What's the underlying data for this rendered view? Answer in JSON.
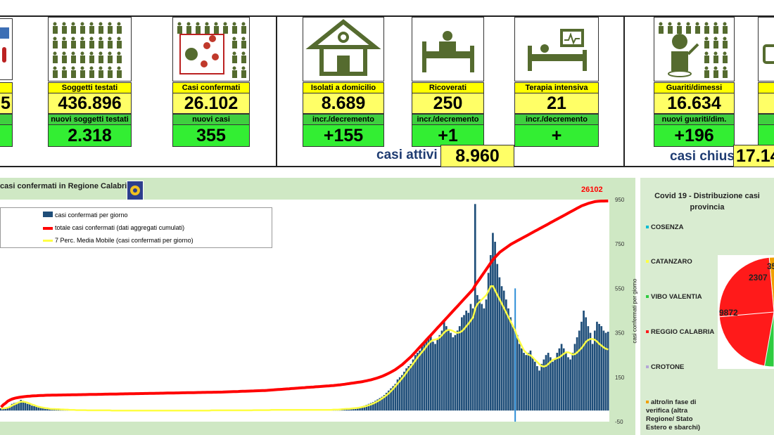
{
  "tiles": [
    {
      "id": "tamponi",
      "label": "",
      "value": "5",
      "inc": ""
    },
    {
      "id": "soggetti",
      "label": "Soggetti testati",
      "value": "436.896",
      "inc_label": "nuovi soggetti testati",
      "inc": "2.318"
    },
    {
      "id": "casi",
      "label": "Casi confermati",
      "value": "26.102",
      "inc_label": "nuovi casi",
      "inc": "355"
    },
    {
      "id": "isolati",
      "label": "Isolati a domicilio",
      "value": "8.689",
      "inc_label": "incr./decremento",
      "inc": "+155"
    },
    {
      "id": "ricoverati",
      "label": "Ricoverati",
      "value": "250",
      "inc_label": "incr./decremento",
      "inc": "+1"
    },
    {
      "id": "terapia",
      "label": "Terapia intensiva",
      "value": "21",
      "inc_label": "incr./decremento",
      "inc": "+"
    },
    {
      "id": "guariti",
      "label": "Guariti/dimessi",
      "value": "16.634",
      "inc_label": "nuovi guariti/dim.",
      "inc": "+196"
    }
  ],
  "summary": {
    "attivi_label": "casi attivi",
    "attivi_value": "8.960",
    "chiusi_label": "casi chiusi",
    "chiusi_value": "17.14"
  },
  "colors": {
    "bars": "#1f4e79",
    "total": "#ff0000",
    "ma": "#ffff44",
    "bg": "#cfe8c4"
  },
  "chart_data": {
    "type": "bar",
    "title": "casi confermati in Regione Calabria",
    "legend": [
      "casi confermati per giorno",
      "totale casi confermati (dati aggregati cumulati)",
      "7 Perc. Media Mobile (casi confermati per giorno)"
    ],
    "ylabel": "casi confermati  per giorno",
    "ylim": [
      -50,
      950
    ],
    "yticks": [
      950,
      750,
      550,
      350,
      150,
      -50
    ],
    "total_label": "26102",
    "daily": [
      10,
      12,
      8,
      14,
      20,
      30,
      34,
      36,
      40,
      48,
      44,
      36,
      30,
      28,
      22,
      20,
      18,
      14,
      12,
      12,
      10,
      8,
      8,
      6,
      6,
      6,
      5,
      5,
      4,
      4,
      3,
      3,
      3,
      2,
      2,
      2,
      2,
      2,
      1,
      1,
      1,
      1,
      1,
      1,
      1,
      2,
      1,
      1,
      1,
      0,
      0,
      0,
      1,
      0,
      0,
      0,
      0,
      0,
      0,
      0,
      0,
      0,
      0,
      0,
      1,
      0,
      0,
      0,
      0,
      0,
      0,
      0,
      0,
      0,
      0,
      1,
      0,
      0,
      0,
      0,
      0,
      0,
      0,
      1,
      0,
      0,
      0,
      0,
      0,
      0,
      0,
      0,
      1,
      0,
      1,
      0,
      1,
      2,
      0,
      1,
      0,
      0,
      1,
      2,
      0,
      1,
      0,
      2,
      1,
      1,
      2,
      1,
      2,
      1,
      2,
      3,
      2,
      2,
      2,
      3,
      2,
      3,
      2,
      3,
      3,
      4,
      3,
      2,
      3,
      2,
      4,
      3,
      2,
      3,
      3,
      2,
      2,
      3,
      2,
      3,
      3,
      2,
      3,
      4,
      3,
      3,
      2,
      3,
      3,
      4,
      4,
      5,
      4,
      6,
      7,
      8,
      9,
      8,
      10,
      11,
      12,
      14,
      16,
      18,
      22,
      26,
      30,
      34,
      38,
      44,
      50,
      56,
      62,
      70,
      80,
      90,
      100,
      110,
      120,
      140,
      150,
      160,
      175,
      190,
      200,
      210,
      230,
      250,
      260,
      270,
      290,
      300,
      320,
      330,
      340,
      310,
      300,
      320,
      340,
      360,
      400,
      380,
      360,
      350,
      330,
      340,
      360,
      380,
      420,
      430,
      450,
      440,
      480,
      460,
      930,
      520,
      500,
      480,
      460,
      500,
      620,
      700,
      800,
      760,
      660,
      600,
      560,
      540,
      500,
      460,
      420,
      380,
      360,
      340,
      300,
      280,
      260,
      250,
      260,
      270,
      240,
      220,
      200,
      180,
      210,
      230,
      250,
      260,
      240,
      220,
      230,
      260,
      280,
      300,
      280,
      260,
      240,
      230,
      260,
      300,
      330,
      360,
      400,
      450,
      420,
      380,
      350,
      300,
      360,
      400,
      390,
      380,
      360,
      350,
      355
    ],
    "total": [
      400,
      700,
      900,
      1150,
      1300,
      1420,
      1510,
      1570,
      1620,
      1660,
      1700,
      1730,
      1760,
      1780,
      1800,
      1820,
      1835,
      1850,
      1860,
      1870,
      1880,
      1890,
      1895,
      1900,
      1905,
      1910,
      1915,
      1920,
      1925,
      1930,
      1935,
      1940,
      1945,
      1950,
      1955,
      1960,
      1965,
      1970,
      1975,
      1980,
      1985,
      1990,
      1995,
      2000,
      2005,
      2010,
      2015,
      2020,
      2025,
      2030,
      2035,
      2040,
      2045,
      2050,
      2055,
      2060,
      2065,
      2070,
      2075,
      2080,
      2085,
      2090,
      2095,
      2100,
      2105,
      2110,
      2115,
      2120,
      2125,
      2130,
      2135,
      2140,
      2145,
      2150,
      2155,
      2160,
      2165,
      2170,
      2175,
      2180,
      2185,
      2190,
      2195,
      2200,
      2205,
      2210,
      2215,
      2220,
      2225,
      2230,
      2235,
      2240,
      2245,
      2250,
      2255,
      2260,
      2265,
      2270,
      2275,
      2280,
      2290,
      2300,
      2310,
      2320,
      2330,
      2340,
      2350,
      2360,
      2370,
      2380,
      2390,
      2400,
      2410,
      2420,
      2430,
      2440,
      2450,
      2460,
      2470,
      2480,
      2500,
      2520,
      2540,
      2560,
      2580,
      2600,
      2620,
      2640,
      2660,
      2680,
      2700,
      2720,
      2740,
      2760,
      2780,
      2800,
      2820,
      2840,
      2860,
      2880,
      2900,
      2920,
      2940,
      2960,
      2980,
      3000,
      3020,
      3040,
      3060,
      3080,
      3100,
      3130,
      3160,
      3190,
      3220,
      3260,
      3300,
      3340,
      3380,
      3420,
      3460,
      3500,
      3540,
      3580,
      3640,
      3700,
      3760,
      3820,
      3900,
      3980,
      4060,
      4160,
      4260,
      4380,
      4500,
      4640,
      4780,
      4940,
      5100,
      5300,
      5500,
      5700,
      5950,
      6200,
      6450,
      6700,
      7000,
      7300,
      7600,
      7900,
      8200,
      8500,
      8800,
      9100,
      9400,
      9700,
      10000,
      10300,
      10600,
      10900,
      11200,
      11500,
      11800,
      12100,
      12400,
      12700,
      13000,
      13300,
      13600,
      13900,
      14200,
      14500,
      14800,
      15100,
      15600,
      16000,
      16400,
      16800,
      17200,
      17600,
      18000,
      18400,
      18800,
      19100,
      19400,
      19700,
      19900,
      20100,
      20300,
      20500,
      20700,
      20850,
      21000,
      21150,
      21300,
      21450,
      21600,
      21750,
      21900,
      22050,
      22200,
      22350,
      22500,
      22650,
      22800,
      22950,
      23100,
      23250,
      23400,
      23550,
      23700,
      23850,
      24000,
      24150,
      24300,
      24450,
      24600,
      24750,
      24900,
      25050,
      25200,
      25350,
      25500,
      25600,
      25700,
      25800,
      25880,
      25950,
      26020,
      26060,
      26080,
      26090,
      26095,
      26100,
      26102
    ],
    "ma": [
      8,
      10,
      11,
      13,
      17,
      23,
      28,
      32,
      37,
      40,
      40,
      38,
      35,
      31,
      27,
      24,
      20,
      17,
      15,
      13,
      11,
      10,
      8,
      7,
      7,
      6,
      6,
      5,
      5,
      4,
      4,
      3,
      3,
      3,
      2,
      2,
      2,
      2,
      2,
      1,
      1,
      1,
      1,
      1,
      1,
      1,
      1,
      1,
      1,
      1,
      0,
      0,
      0,
      0,
      0,
      0,
      0,
      0,
      0,
      0,
      0,
      0,
      0,
      0,
      0,
      0,
      0,
      0,
      0,
      0,
      0,
      0,
      0,
      0,
      0,
      0,
      0,
      0,
      0,
      0,
      0,
      0,
      0,
      0,
      0,
      0,
      0,
      0,
      0,
      0,
      0,
      0,
      0,
      0,
      0,
      1,
      1,
      1,
      1,
      1,
      1,
      1,
      1,
      1,
      1,
      1,
      1,
      1,
      1,
      1,
      1,
      1,
      1,
      1,
      2,
      2,
      2,
      2,
      2,
      2,
      2,
      2,
      3,
      3,
      3,
      3,
      3,
      3,
      3,
      3,
      3,
      3,
      3,
      3,
      3,
      3,
      3,
      3,
      3,
      3,
      3,
      3,
      3,
      3,
      3,
      3,
      3,
      3,
      3,
      3,
      4,
      4,
      4,
      5,
      6,
      7,
      8,
      8,
      9,
      10,
      11,
      12,
      14,
      16,
      18,
      21,
      24,
      28,
      32,
      37,
      42,
      48,
      55,
      62,
      70,
      78,
      88,
      98,
      110,
      122,
      134,
      146,
      158,
      172,
      186,
      198,
      212,
      226,
      240,
      252,
      264,
      276,
      290,
      302,
      312,
      318,
      320,
      322,
      330,
      340,
      352,
      360,
      364,
      362,
      358,
      352,
      350,
      352,
      358,
      368,
      380,
      392,
      406,
      420,
      460,
      480,
      490,
      500,
      510,
      520,
      540,
      560,
      560,
      540,
      520,
      500,
      480,
      460,
      440,
      420,
      400,
      380,
      360,
      330,
      310,
      290,
      270,
      260,
      252,
      248,
      238,
      228,
      218,
      208,
      200,
      198,
      202,
      210,
      220,
      228,
      232,
      236,
      240,
      248,
      256,
      262,
      262,
      258,
      252,
      254,
      262,
      272,
      282,
      296,
      310,
      318,
      322,
      322,
      318,
      310,
      300,
      292,
      284,
      278,
      275
    ]
  },
  "pie": {
    "title": "Covid 19 - Distribuzione casi provincia",
    "items": [
      {
        "name": "COSENZA",
        "color": "#00bcd4",
        "value": ""
      },
      {
        "name": "CATANZARO",
        "color": "#ffff44",
        "value": ""
      },
      {
        "name": "VIBO VALENTIA",
        "color": "#2ecc40",
        "value": ""
      },
      {
        "name": "REGGIO CALABRIA",
        "color": "#ff1a1a",
        "value": "9872"
      },
      {
        "name": "CROTONE",
        "color": "#b4a7d6",
        "value": "2307"
      },
      {
        "name": "altro/in fase di verifica (altra Regione/ Stato Estero e sbarchi)",
        "color": "#f0a000",
        "value": "35"
      }
    ]
  }
}
